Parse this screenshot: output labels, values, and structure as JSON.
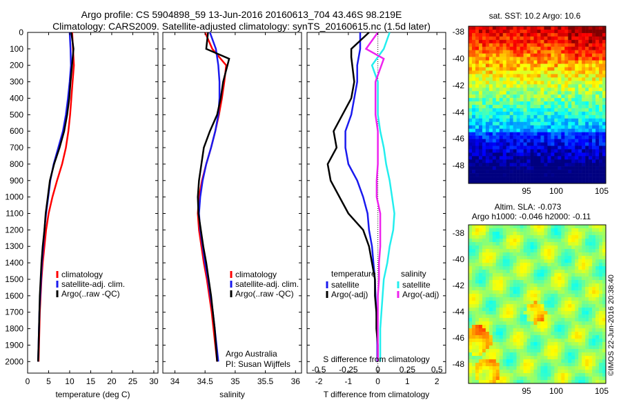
{
  "header": {
    "title_line1": "Argo profile: CS 5904898_59 13-Jun-2016 20160613_704 43.46S 98.219E",
    "title_line2": "Climatology: CARS2009. Satellite-adjusted climatology: synTS_20160615.nc (1.5d later)"
  },
  "colors": {
    "climatology": "#ff0000",
    "satellite": "#1a1aee",
    "argo": "#000000",
    "salinity_satellite": "#22eeee",
    "salinity_argo": "#ee22ee"
  },
  "depth_ticks": [
    "0",
    "100",
    "200",
    "300",
    "400",
    "500",
    "600",
    "700",
    "800",
    "900",
    "1000",
    "1100",
    "1200",
    "1300",
    "1400",
    "1500",
    "1600",
    "1700",
    "1800",
    "1900",
    "2000"
  ],
  "legend_profiles": [
    "climatology",
    "satellite-adj. clim.",
    "Argo(..raw -QC)"
  ],
  "credit": {
    "line1": "Argo Australia",
    "line2": "PI: Susan Wijffels"
  },
  "stamp": "©IMOS 22-Jun-2016 20:38:40",
  "sst_map": {
    "title": "sat. SST: 10.2  Argo: 10.6",
    "colormap": "jet"
  },
  "sla_map": {
    "title_line1": "Altim. SLA: -0.073",
    "title_line2": "Argo h1000: -0.046 h2000: -0.11",
    "colormap": "jet"
  },
  "map_xticks": [
    "95",
    "100",
    "105"
  ],
  "map_yticks": [
    "-38",
    "-40",
    "-42",
    "-44",
    "-46",
    "-48"
  ],
  "chart_data": [
    {
      "type": "line",
      "xlabel": "temperature (deg C)",
      "ylabel": "",
      "xlim": [
        0,
        31
      ],
      "ylim": [
        2070,
        0
      ],
      "x_ticks": [
        "0",
        "5",
        "10",
        "15",
        "20",
        "25",
        "30"
      ],
      "series": [
        {
          "name": "climatology",
          "x": [
            10.6,
            10.8,
            11.0,
            10.7,
            10.4,
            10.1,
            9.7,
            9.1,
            8.2,
            7.0,
            5.9,
            5.0,
            4.4,
            4.0,
            3.6,
            3.3,
            3.1,
            2.9,
            2.8,
            2.7,
            2.6
          ],
          "y": [
            0,
            100,
            200,
            300,
            400,
            500,
            600,
            700,
            800,
            900,
            1000,
            1100,
            1200,
            1300,
            1400,
            1500,
            1600,
            1700,
            1800,
            1900,
            2000
          ]
        },
        {
          "name": "satellite-adj. clim.",
          "x": [
            10.0,
            10.2,
            10.3,
            10.0,
            9.6,
            9.1,
            8.4,
            7.3,
            6.2,
            5.4,
            4.9,
            4.4,
            4.0,
            3.7,
            3.4,
            3.2,
            3.0,
            2.8,
            2.7,
            2.6,
            2.5
          ],
          "y": [
            0,
            100,
            200,
            300,
            400,
            500,
            600,
            700,
            800,
            900,
            1000,
            1100,
            1200,
            1300,
            1400,
            1500,
            1600,
            1700,
            1800,
            1900,
            2000
          ]
        },
        {
          "name": "Argo(..raw -QC)",
          "x": [
            10.4,
            10.9,
            10.7,
            10.2,
            9.9,
            9.4,
            8.7,
            7.6,
            6.3,
            5.3,
            4.8,
            4.3,
            4.0,
            3.6,
            3.3,
            3.1,
            2.9,
            2.8,
            2.7,
            2.6,
            2.5
          ],
          "y": [
            0,
            100,
            160,
            300,
            400,
            500,
            600,
            700,
            800,
            900,
            1000,
            1100,
            1200,
            1300,
            1400,
            1500,
            1600,
            1700,
            1800,
            1900,
            2000
          ]
        }
      ]
    },
    {
      "type": "line",
      "xlabel": "salinity",
      "ylabel": "",
      "xlim": [
        33.8,
        36.1
      ],
      "ylim": [
        2070,
        0
      ],
      "x_ticks": [
        "34",
        "34.5",
        "35",
        "35.5",
        "36"
      ],
      "series": [
        {
          "name": "climatology",
          "x": [
            34.5,
            34.62,
            34.85,
            34.82,
            34.78,
            34.73,
            34.67,
            34.6,
            34.52,
            34.45,
            34.4,
            34.38,
            34.4,
            34.44,
            34.48,
            34.53,
            34.57,
            34.61,
            34.64,
            34.67,
            34.7
          ],
          "y": [
            0,
            100,
            200,
            300,
            400,
            500,
            600,
            700,
            800,
            900,
            1000,
            1100,
            1200,
            1300,
            1400,
            1500,
            1600,
            1700,
            1800,
            1900,
            2000
          ]
        },
        {
          "name": "satellite-adj. clim.",
          "x": [
            34.58,
            34.68,
            34.72,
            34.74,
            34.74,
            34.72,
            34.67,
            34.6,
            34.52,
            34.46,
            34.42,
            34.4,
            34.42,
            34.46,
            34.5,
            34.55,
            34.59,
            34.63,
            34.66,
            34.69,
            34.72
          ],
          "y": [
            0,
            100,
            200,
            300,
            400,
            500,
            600,
            700,
            800,
            900,
            1000,
            1100,
            1200,
            1300,
            1400,
            1500,
            1600,
            1700,
            1800,
            1900,
            2000
          ]
        },
        {
          "name": "Argo(..raw -QC)",
          "x": [
            34.55,
            34.52,
            34.9,
            34.8,
            34.76,
            34.7,
            34.58,
            34.48,
            34.44,
            34.4,
            34.38,
            34.39,
            34.43,
            34.47,
            34.52,
            34.56,
            34.6,
            34.63,
            34.66,
            34.68,
            34.7
          ],
          "y": [
            0,
            100,
            160,
            300,
            400,
            500,
            600,
            700,
            800,
            900,
            1000,
            1100,
            1200,
            1300,
            1400,
            1500,
            1600,
            1700,
            1800,
            1900,
            2000
          ]
        }
      ]
    },
    {
      "type": "line",
      "xlabel": "T difference from climatology",
      "ylabel": "",
      "top_label": "S difference from climatology",
      "xlim": [
        -2.4,
        2.3
      ],
      "ylim": [
        2070,
        0
      ],
      "x_ticks": [
        "-2",
        "-1",
        "0",
        "1",
        "2"
      ],
      "top_ticks": [
        "-0.5",
        "-0.25",
        "0",
        "0.25",
        "0.5"
      ],
      "legend_left": {
        "heading": "temperature",
        "entries": [
          "satellite",
          "Argo(-adj)"
        ]
      },
      "legend_right": {
        "heading": "salinity",
        "entries": [
          "satellite",
          "Argo(-adj)"
        ]
      },
      "series": [
        {
          "name": "temperature satellite",
          "x": [
            -0.6,
            -0.6,
            -0.7,
            -0.7,
            -0.8,
            -0.9,
            -1.1,
            -1.1,
            -1.0,
            -0.7,
            -0.5,
            -0.35,
            -0.3,
            -0.2,
            -0.15,
            -0.1,
            -0.08,
            -0.05,
            -0.03,
            -0.02,
            -0.02
          ],
          "y": [
            0,
            100,
            200,
            300,
            400,
            500,
            600,
            700,
            800,
            900,
            1000,
            1100,
            1200,
            1300,
            1400,
            1500,
            1600,
            1700,
            1800,
            1900,
            2000
          ]
        },
        {
          "name": "temperature Argo(-adj)",
          "x": [
            -0.3,
            -0.9,
            -0.9,
            -0.8,
            -0.9,
            -1.2,
            -1.5,
            -1.4,
            -1.7,
            -1.6,
            -1.3,
            -1.0,
            -0.5,
            -0.3,
            -0.2,
            -0.1,
            -0.1,
            -0.05,
            -0.05,
            0.0,
            0.0
          ],
          "y": [
            0,
            100,
            150,
            300,
            400,
            500,
            600,
            700,
            800,
            900,
            1000,
            1100,
            1200,
            1300,
            1400,
            1500,
            1600,
            1700,
            1800,
            1900,
            2000
          ]
        },
        {
          "name": "salinity satellite",
          "x": [
            0.1,
            0.05,
            -0.05,
            0.0,
            0.0,
            0.0,
            0.02,
            0.05,
            0.07,
            0.1,
            0.12,
            0.14,
            0.13,
            0.1,
            0.08,
            0.05,
            0.04,
            0.03,
            0.02,
            0.02,
            0.02
          ],
          "y": [
            0,
            100,
            200,
            300,
            400,
            500,
            600,
            700,
            800,
            900,
            1000,
            1100,
            1200,
            1300,
            1400,
            1500,
            1600,
            1700,
            1800,
            1900,
            2000
          ]
        },
        {
          "name": "salinity Argo(-adj)",
          "x": [
            0.0,
            -0.1,
            0.05,
            -0.02,
            -0.02,
            -0.02,
            0.0,
            0.0,
            0.0,
            -0.01,
            -0.01,
            0.02,
            0.02,
            0.02,
            0.01,
            0.01,
            0.0,
            0.0,
            0.0,
            0.0,
            0.0
          ],
          "y": [
            0,
            100,
            160,
            300,
            400,
            500,
            600,
            700,
            800,
            900,
            1000,
            1100,
            1200,
            1300,
            1400,
            1500,
            1600,
            1700,
            1800,
            1900,
            2000
          ]
        }
      ]
    }
  ]
}
